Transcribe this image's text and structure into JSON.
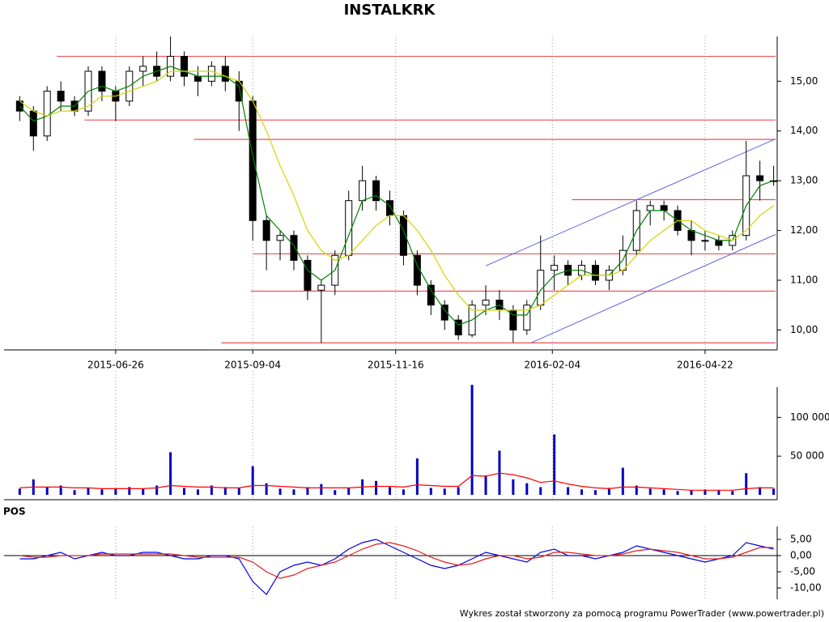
{
  "chart_data": {
    "type": "candlestick",
    "title": "INSTALKRK",
    "footer": "Wykres został stworzony za pomocą programu PowerTrader (www.powertrader.pl)",
    "x": [
      "2015-05-08",
      "2015-05-15",
      "2015-05-22",
      "2015-05-29",
      "2015-06-05",
      "2015-06-12",
      "2015-06-19",
      "2015-06-26",
      "2015-07-03",
      "2015-07-10",
      "2015-07-17",
      "2015-07-24",
      "2015-07-31",
      "2015-08-07",
      "2015-08-14",
      "2015-08-21",
      "2015-08-28",
      "2015-09-04",
      "2015-09-11",
      "2015-09-18",
      "2015-09-25",
      "2015-10-02",
      "2015-10-09",
      "2015-10-16",
      "2015-10-23",
      "2015-10-30",
      "2015-11-06",
      "2015-11-13",
      "2015-11-20",
      "2015-11-27",
      "2015-12-04",
      "2015-12-11",
      "2015-12-18",
      "2015-12-25",
      "2016-01-01",
      "2016-01-08",
      "2016-01-15",
      "2016-01-22",
      "2016-01-29",
      "2016-02-05",
      "2016-02-12",
      "2016-02-19",
      "2016-02-26",
      "2016-03-04",
      "2016-03-11",
      "2016-03-18",
      "2016-03-25",
      "2016-04-01",
      "2016-04-08",
      "2016-04-15",
      "2016-04-22",
      "2016-04-29",
      "2016-05-06",
      "2016-05-13",
      "2016-05-20",
      "2016-05-27"
    ],
    "xlim": [
      "2015-04-30",
      "2016-05-28"
    ],
    "xticks": [
      "2015-06-26",
      "2015-09-04",
      "2015-11-16",
      "2016-02-04",
      "2016-04-22"
    ],
    "ylim": [
      9.6,
      15.9
    ],
    "yticks": [
      {
        "value": 10,
        "label": "10,00"
      },
      {
        "value": 11,
        "label": "11,00"
      },
      {
        "value": 12,
        "label": "12,00"
      },
      {
        "value": 13,
        "label": "13,00"
      },
      {
        "value": 14,
        "label": "14,00"
      },
      {
        "value": 15,
        "label": "15,00"
      }
    ],
    "grid": true,
    "up_color": "#ffffff",
    "down_color": "#000000",
    "open": [
      14.6,
      14.4,
      13.9,
      14.8,
      14.6,
      14.4,
      15.2,
      14.8,
      14.6,
      15.2,
      15.3,
      15.1,
      15.5,
      15.1,
      15.0,
      15.3,
      15.0,
      14.6,
      12.2,
      11.8,
      11.9,
      11.4,
      10.8,
      10.9,
      11.5,
      12.6,
      13.0,
      12.6,
      12.3,
      11.5,
      10.9,
      10.5,
      10.2,
      9.9,
      10.5,
      10.6,
      10.4,
      10.0,
      10.5,
      11.2,
      11.3,
      11.1,
      11.3,
      11.0,
      11.2,
      11.6,
      12.4,
      12.5,
      12.4,
      12.0,
      11.8,
      11.8,
      11.7,
      11.9,
      13.1,
      13.0
    ],
    "high": [
      14.7,
      14.5,
      14.9,
      15.0,
      14.7,
      15.3,
      15.3,
      14.9,
      15.3,
      15.5,
      15.6,
      15.9,
      15.6,
      15.3,
      15.4,
      15.5,
      15.2,
      14.7,
      12.3,
      12.0,
      12.0,
      11.5,
      11.0,
      11.6,
      12.8,
      13.3,
      13.1,
      12.8,
      12.4,
      11.6,
      11.0,
      10.6,
      10.3,
      10.6,
      10.9,
      10.8,
      10.5,
      10.6,
      11.9,
      11.5,
      11.4,
      11.4,
      11.4,
      11.3,
      11.9,
      12.6,
      12.6,
      12.6,
      12.5,
      12.2,
      12.0,
      11.9,
      12.0,
      13.8,
      13.4,
      13.3
    ],
    "low": [
      14.2,
      13.6,
      13.8,
      14.4,
      14.3,
      14.3,
      14.6,
      14.2,
      14.5,
      14.9,
      15.0,
      15.0,
      14.9,
      14.7,
      14.9,
      14.8,
      14.0,
      11.8,
      11.2,
      11.4,
      11.2,
      10.6,
      9.74,
      10.7,
      11.4,
      12.4,
      12.4,
      12.1,
      11.3,
      10.7,
      10.3,
      10.0,
      9.8,
      9.85,
      10.3,
      10.2,
      9.75,
      9.9,
      10.4,
      10.8,
      10.9,
      11.0,
      10.9,
      10.8,
      11.1,
      11.5,
      12.1,
      12.2,
      11.9,
      11.5,
      11.6,
      11.6,
      11.6,
      11.8,
      12.6,
      12.9
    ],
    "close": [
      14.4,
      13.9,
      14.8,
      14.6,
      14.4,
      15.2,
      14.8,
      14.6,
      15.2,
      15.3,
      15.1,
      15.5,
      15.1,
      15.0,
      15.3,
      15.0,
      14.6,
      12.2,
      11.8,
      11.9,
      11.4,
      10.8,
      10.9,
      11.5,
      12.6,
      13.0,
      12.6,
      12.3,
      11.5,
      10.9,
      10.5,
      10.2,
      9.9,
      10.5,
      10.6,
      10.4,
      10.0,
      10.5,
      11.2,
      11.3,
      11.1,
      11.3,
      11.0,
      11.2,
      11.6,
      12.4,
      12.5,
      12.4,
      12.0,
      11.8,
      11.8,
      11.7,
      11.9,
      13.1,
      13.0,
      13.0
    ],
    "series": [
      {
        "color": "#008000",
        "values": [
          14.5,
          14.2,
          14.3,
          14.5,
          14.5,
          14.8,
          14.9,
          14.8,
          14.9,
          15.1,
          15.2,
          15.3,
          15.2,
          15.1,
          15.1,
          15.1,
          14.9,
          13.5,
          12.3,
          12.0,
          11.7,
          11.2,
          11.0,
          11.2,
          11.9,
          12.6,
          12.7,
          12.5,
          12.0,
          11.3,
          10.8,
          10.4,
          10.1,
          10.2,
          10.4,
          10.5,
          10.3,
          10.3,
          10.8,
          11.1,
          11.2,
          11.2,
          11.1,
          11.1,
          11.4,
          12.0,
          12.4,
          12.4,
          12.2,
          12.0,
          11.9,
          11.8,
          11.8,
          12.5,
          12.9,
          13.0
        ]
      },
      {
        "color": "#d4d400",
        "values": [
          14.6,
          14.4,
          14.3,
          14.4,
          14.4,
          14.5,
          14.7,
          14.7,
          14.8,
          14.9,
          15.0,
          15.2,
          15.2,
          15.2,
          15.2,
          15.1,
          15.0,
          14.6,
          14.0,
          13.3,
          12.7,
          12.0,
          11.6,
          11.4,
          11.5,
          11.8,
          12.1,
          12.3,
          12.3,
          12.0,
          11.6,
          11.1,
          10.7,
          10.4,
          10.4,
          10.4,
          10.4,
          10.4,
          10.5,
          10.7,
          10.9,
          11.1,
          11.1,
          11.1,
          11.2,
          11.5,
          11.8,
          12.0,
          12.2,
          12.2,
          12.0,
          11.9,
          11.8,
          12.0,
          12.3,
          12.5
        ]
      }
    ],
    "levels_color": "#f05050",
    "levels": [
      {
        "value": 15.5,
        "from": "2015-05-27"
      },
      {
        "value": 14.22,
        "from": "2015-06-10"
      },
      {
        "value": 13.83,
        "from": "2015-08-05"
      },
      {
        "value": 12.62,
        "from": "2016-02-14"
      },
      {
        "value": 11.53,
        "from": "2015-09-04"
      },
      {
        "value": 10.78,
        "from": "2015-09-03"
      },
      {
        "value": 9.74,
        "from": "2015-08-19"
      }
    ],
    "trend_color": "#6060e0",
    "trendlines": [
      {
        "from": "2016-01-01",
        "to": "2016-05-28",
        "start": 11.29,
        "end": 13.84
      },
      {
        "from": "2016-01-24",
        "to": "2016-05-28",
        "start": 9.74,
        "end": 11.92
      }
    ],
    "volume": {
      "type": "bar",
      "color": "#0000c0",
      "ylim": [
        0,
        160000
      ],
      "yticks": [
        {
          "value": 50000,
          "label": "50 000"
        },
        {
          "value": 100000,
          "label": "100 000"
        }
      ],
      "values": [
        8000,
        20000,
        10000,
        12000,
        6000,
        9000,
        7000,
        8000,
        10000,
        8000,
        12000,
        55000,
        9000,
        7000,
        12000,
        10000,
        9000,
        37000,
        15000,
        8000,
        7000,
        10000,
        14000,
        6000,
        9000,
        20000,
        18000,
        10000,
        7000,
        47000,
        9000,
        8000,
        10000,
        142000,
        25000,
        57000,
        20000,
        15000,
        10000,
        78000,
        10000,
        7000,
        6000,
        9000,
        35000,
        12000,
        8000,
        7000,
        5000,
        6000,
        7000,
        6000,
        5000,
        28000,
        10000,
        8000
      ],
      "ma": {
        "color": "#ff0000",
        "values": [
          9000,
          10000,
          10000,
          10000,
          9000,
          9000,
          8000,
          8000,
          8000,
          8000,
          9000,
          12000,
          11000,
          10000,
          10000,
          9000,
          9000,
          12000,
          12000,
          11000,
          10000,
          9000,
          9000,
          9000,
          9000,
          10000,
          11000,
          11000,
          10000,
          13000,
          12000,
          11000,
          11000,
          25000,
          24000,
          28000,
          26000,
          22000,
          16000,
          18000,
          14000,
          11000,
          9000,
          8000,
          10000,
          10000,
          9000,
          8000,
          7000,
          6000,
          6000,
          6000,
          6000,
          8000,
          9000,
          9000
        ]
      }
    },
    "pos": {
      "type": "line",
      "title": "POS",
      "ylim": [
        -13.5,
        9
      ],
      "yticks": [
        {
          "value": 5,
          "label": "5,00"
        },
        {
          "value": 0,
          "label": "0,00"
        },
        {
          "value": -5,
          "label": "-5,00"
        },
        {
          "value": -10,
          "label": "-10,00"
        }
      ],
      "series": [
        {
          "color": "#0000e0",
          "values": [
            -1,
            -1,
            0,
            1,
            -1,
            0,
            1,
            0,
            0,
            1,
            1,
            0,
            -1,
            -1,
            0,
            0,
            -1,
            -8,
            -12,
            -5,
            -3,
            -2,
            -3,
            -1,
            2,
            4,
            5,
            3,
            1,
            -1,
            -3,
            -4,
            -3,
            -1,
            1,
            0,
            -1,
            -2,
            1,
            2,
            0,
            0,
            -1,
            0,
            1,
            3,
            2,
            1,
            0,
            -1,
            -2,
            -1,
            0,
            4,
            3,
            2
          ]
        },
        {
          "color": "#e02020",
          "values": [
            0,
            -0.5,
            -0.5,
            0,
            0,
            0,
            0.5,
            0.5,
            0.5,
            0.5,
            0.5,
            0.5,
            0,
            -0.5,
            -0.5,
            -0.5,
            -0.5,
            -2,
            -5,
            -7,
            -6,
            -4,
            -3,
            -2,
            0,
            2,
            3.5,
            4,
            3,
            1.5,
            -0.5,
            -2,
            -3,
            -2.5,
            -1,
            0,
            0,
            -1,
            -0.5,
            1,
            1,
            0.5,
            0,
            0,
            0.5,
            1.5,
            2,
            1.5,
            1,
            0,
            -1,
            -1,
            -0.5,
            1,
            2.5,
            2.5
          ]
        }
      ]
    }
  }
}
